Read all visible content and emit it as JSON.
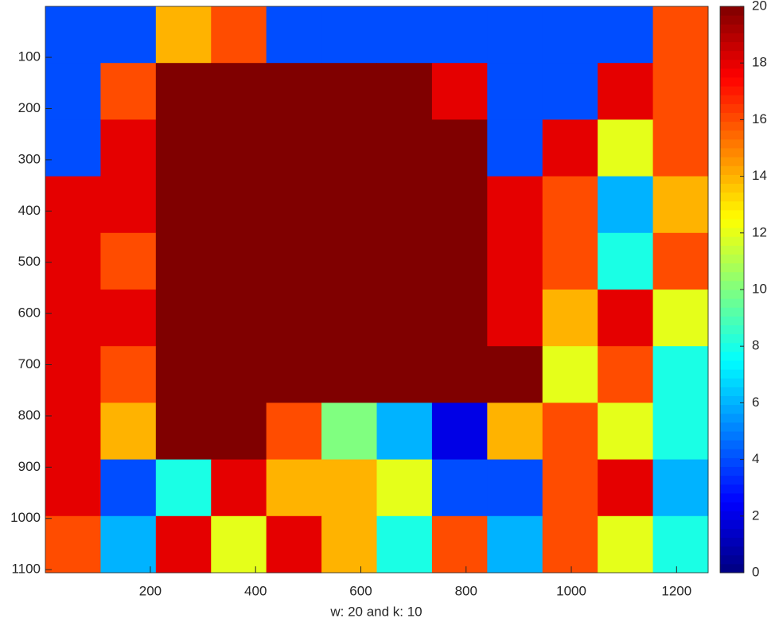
{
  "chart_data": {
    "type": "heatmap",
    "colormap": "jet",
    "xlabel": "w: 20 and k: 10",
    "xlim": [
      0.5,
      1260
    ],
    "ylim": [
      0.5,
      1106
    ],
    "y_reversed": true,
    "xticks": [
      200,
      400,
      600,
      800,
      1000,
      1200
    ],
    "yticks": [
      100,
      200,
      300,
      400,
      500,
      600,
      700,
      800,
      900,
      1000,
      1100
    ],
    "clim": [
      0,
      20
    ],
    "cticks": [
      0,
      2,
      4,
      6,
      8,
      10,
      12,
      14,
      16,
      18,
      20
    ],
    "z": [
      [
        4,
        4,
        14,
        16,
        4,
        4,
        4,
        4,
        4,
        4,
        4,
        16
      ],
      [
        4,
        16,
        20,
        20,
        20,
        20,
        20,
        18,
        4,
        4,
        18,
        16
      ],
      [
        4,
        18,
        20,
        20,
        20,
        20,
        20,
        20,
        4,
        18,
        12,
        16
      ],
      [
        18,
        18,
        20,
        20,
        20,
        20,
        20,
        20,
        18,
        16,
        6,
        14
      ],
      [
        18,
        16,
        20,
        20,
        20,
        20,
        20,
        20,
        18,
        16,
        8,
        16
      ],
      [
        18,
        18,
        20,
        20,
        20,
        20,
        20,
        20,
        18,
        14,
        18,
        12
      ],
      [
        18,
        16,
        20,
        20,
        20,
        20,
        20,
        20,
        20,
        12,
        16,
        8
      ],
      [
        18,
        14,
        20,
        20,
        16,
        10,
        6,
        2,
        14,
        16,
        12,
        8
      ],
      [
        18,
        4,
        8,
        18,
        14,
        14,
        12,
        4,
        4,
        16,
        18,
        6
      ],
      [
        16,
        6,
        18,
        12,
        18,
        14,
        8,
        16,
        6,
        16,
        12,
        8
      ]
    ]
  }
}
